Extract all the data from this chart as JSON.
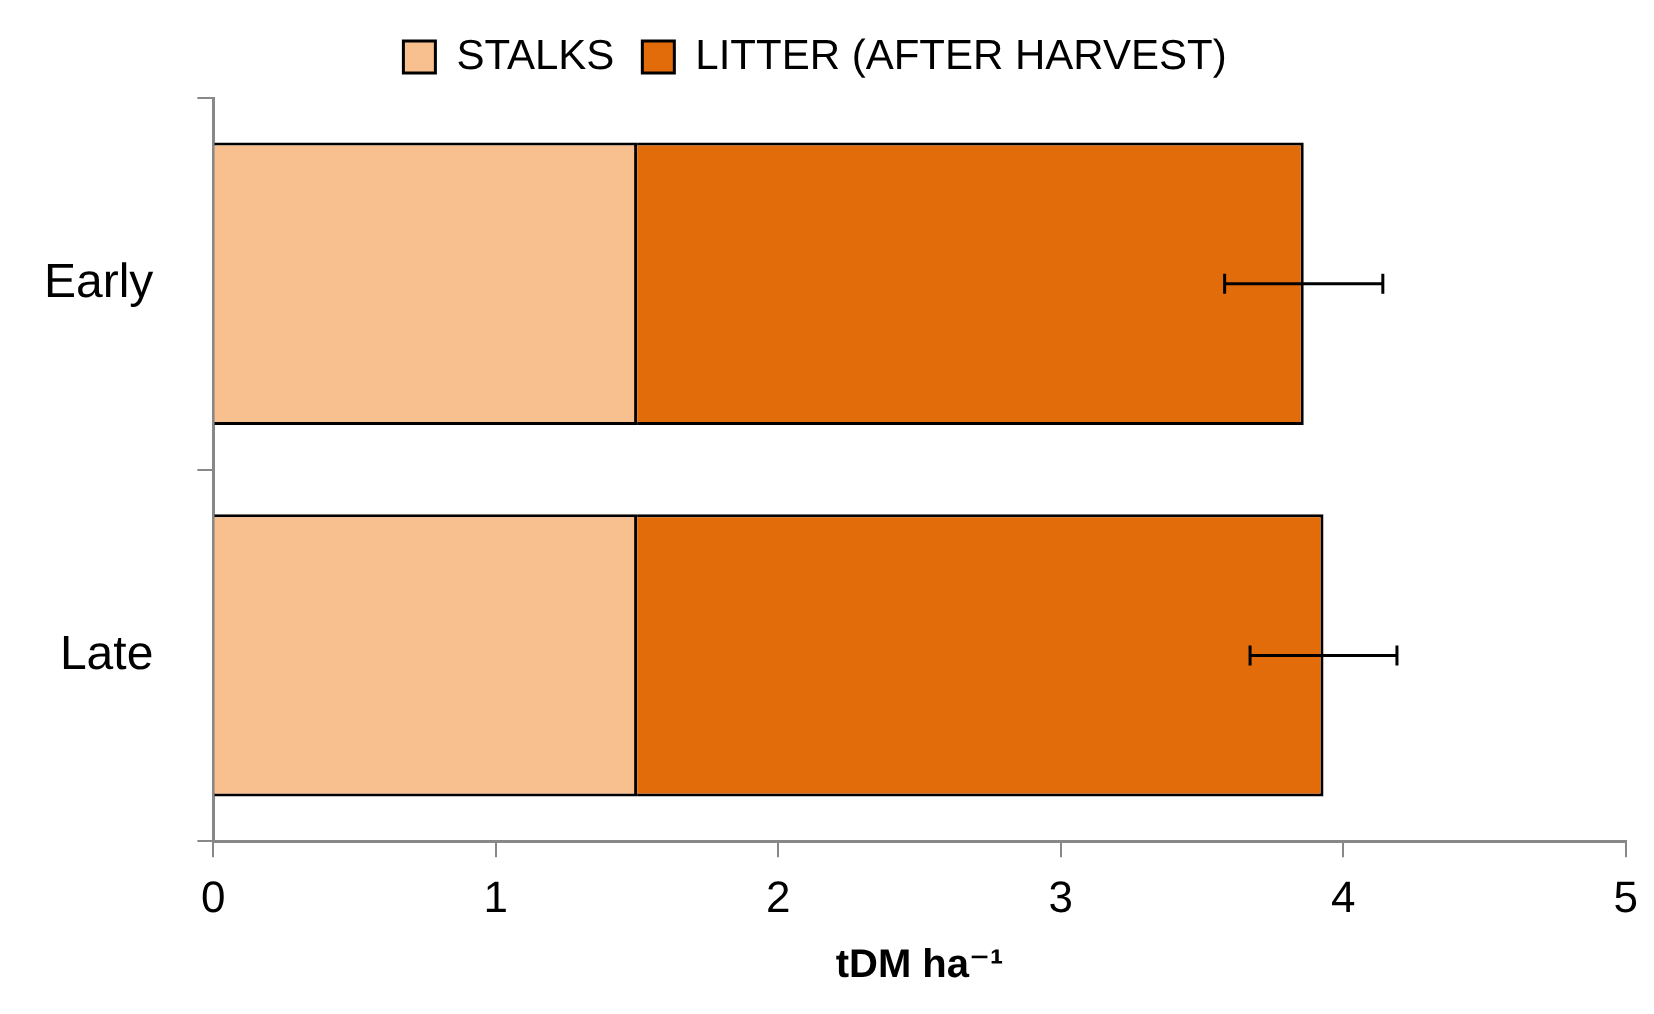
{
  "chart_data": {
    "type": "bar",
    "orientation": "horizontal",
    "stacked": true,
    "categories": [
      "Early",
      "Late"
    ],
    "series": [
      {
        "name": "STALKS",
        "color": "#f9c08f",
        "values": [
          1.5,
          1.5
        ]
      },
      {
        "name": "LITTER (AFTER HARVEST)",
        "color": "#e36c0a",
        "values": [
          2.36,
          2.43
        ],
        "errors": [
          0.28,
          0.26
        ]
      }
    ],
    "xlabel": "tDM ha⁻¹",
    "xlim": [
      0,
      5
    ],
    "xticks": [
      0,
      1,
      2,
      3,
      4,
      5
    ],
    "grid": false,
    "legend": "top"
  }
}
